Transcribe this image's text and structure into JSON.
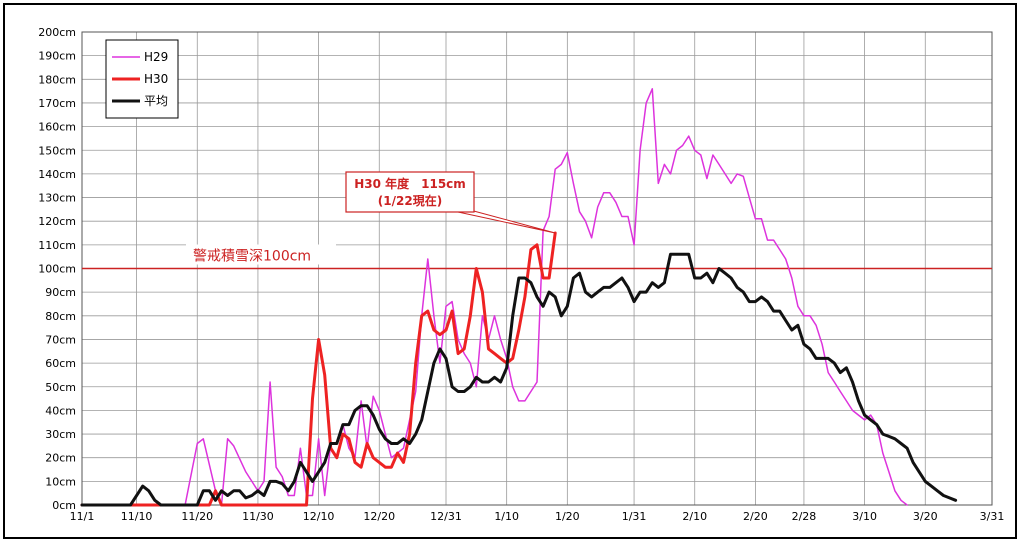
{
  "chart_data": {
    "type": "line",
    "title": "",
    "xlabel": "",
    "ylabel": "",
    "x_unit": "day",
    "x_start_date": "11/1",
    "xlim": [
      0,
      150
    ],
    "ylim": [
      0,
      200
    ],
    "y_ticks": [
      0,
      10,
      20,
      30,
      40,
      50,
      60,
      70,
      80,
      90,
      100,
      110,
      120,
      130,
      140,
      150,
      160,
      170,
      180,
      190,
      200
    ],
    "y_tick_labels": [
      "0cm",
      "10cm",
      "20cm",
      "30cm",
      "40cm",
      "50cm",
      "60cm",
      "70cm",
      "80cm",
      "90cm",
      "100cm",
      "110cm",
      "120cm",
      "130cm",
      "140cm",
      "150cm",
      "160cm",
      "170cm",
      "180cm",
      "190cm",
      "200cm"
    ],
    "x_ticks": [
      0,
      9,
      19,
      29,
      39,
      49,
      60,
      70,
      80,
      91,
      101,
      111,
      119,
      129,
      139,
      150
    ],
    "x_tick_labels": [
      "11/1",
      "11/10",
      "11/20",
      "11/30",
      "12/10",
      "12/20",
      "12/31",
      "1/10",
      "1/20",
      "1/31",
      "2/10",
      "2/20",
      "2/28",
      "3/10",
      "3/20",
      "3/31"
    ],
    "grid": true,
    "legend_position": "top-left",
    "series": [
      {
        "name": "H29",
        "color": "#dd33dd",
        "width": 1.5,
        "points": [
          [
            0,
            0
          ],
          [
            17,
            0
          ],
          [
            19,
            26
          ],
          [
            20,
            28
          ],
          [
            22,
            6
          ],
          [
            23,
            0
          ],
          [
            24,
            28
          ],
          [
            25,
            25
          ],
          [
            27,
            14
          ],
          [
            29,
            6
          ],
          [
            30,
            10
          ],
          [
            31,
            52
          ],
          [
            32,
            16
          ],
          [
            33,
            12
          ],
          [
            34,
            4
          ],
          [
            35,
            4
          ],
          [
            36,
            24
          ],
          [
            37,
            4
          ],
          [
            38,
            4
          ],
          [
            39,
            28
          ],
          [
            40,
            4
          ],
          [
            41,
            26
          ],
          [
            42,
            26
          ],
          [
            43,
            34
          ],
          [
            44,
            24
          ],
          [
            45,
            20
          ],
          [
            46,
            44
          ],
          [
            47,
            24
          ],
          [
            48,
            46
          ],
          [
            49,
            40
          ],
          [
            50,
            30
          ],
          [
            51,
            20
          ],
          [
            52,
            22
          ],
          [
            53,
            24
          ],
          [
            54,
            36
          ],
          [
            55,
            48
          ],
          [
            56,
            80
          ],
          [
            57,
            104
          ],
          [
            58,
            80
          ],
          [
            59,
            60
          ],
          [
            60,
            84
          ],
          [
            61,
            86
          ],
          [
            62,
            70
          ],
          [
            63,
            64
          ],
          [
            64,
            60
          ],
          [
            65,
            50
          ],
          [
            66,
            80
          ],
          [
            67,
            70
          ],
          [
            68,
            80
          ],
          [
            69,
            70
          ],
          [
            70,
            62
          ],
          [
            71,
            50
          ],
          [
            72,
            44
          ],
          [
            73,
            44
          ],
          [
            74,
            48
          ],
          [
            75,
            52
          ],
          [
            76,
            116
          ],
          [
            77,
            122
          ],
          [
            78,
            142
          ],
          [
            79,
            144
          ],
          [
            80,
            149
          ],
          [
            81,
            136
          ],
          [
            82,
            124
          ],
          [
            83,
            120
          ],
          [
            84,
            113
          ],
          [
            85,
            126
          ],
          [
            86,
            132
          ],
          [
            87,
            132
          ],
          [
            88,
            128
          ],
          [
            89,
            122
          ],
          [
            90,
            122
          ],
          [
            91,
            110
          ],
          [
            92,
            150
          ],
          [
            93,
            170
          ],
          [
            94,
            176
          ],
          [
            95,
            136
          ],
          [
            96,
            144
          ],
          [
            97,
            140
          ],
          [
            98,
            150
          ],
          [
            99,
            152
          ],
          [
            100,
            156
          ],
          [
            101,
            150
          ],
          [
            102,
            148
          ],
          [
            103,
            138
          ],
          [
            104,
            148
          ],
          [
            105,
            144
          ],
          [
            106,
            140
          ],
          [
            107,
            136
          ],
          [
            108,
            140
          ],
          [
            109,
            139
          ],
          [
            110,
            130
          ],
          [
            111,
            121
          ],
          [
            112,
            121
          ],
          [
            113,
            112
          ],
          [
            114,
            112
          ],
          [
            115,
            108
          ],
          [
            116,
            104
          ],
          [
            117,
            96
          ],
          [
            118,
            84
          ],
          [
            119,
            80
          ],
          [
            120,
            80
          ],
          [
            121,
            76
          ],
          [
            122,
            68
          ],
          [
            123,
            56
          ],
          [
            124,
            52
          ],
          [
            125,
            48
          ],
          [
            126,
            44
          ],
          [
            127,
            40
          ],
          [
            128,
            38
          ],
          [
            129,
            36
          ],
          [
            130,
            38
          ],
          [
            131,
            34
          ],
          [
            132,
            22
          ],
          [
            133,
            14
          ],
          [
            134,
            6
          ],
          [
            135,
            2
          ],
          [
            136,
            0
          ]
        ]
      },
      {
        "name": "H30",
        "color": "#ee2222",
        "width": 3,
        "points": [
          [
            0,
            0
          ],
          [
            21,
            0
          ],
          [
            22,
            6
          ],
          [
            23,
            0
          ],
          [
            24,
            0
          ],
          [
            33,
            0
          ],
          [
            36,
            0
          ],
          [
            37,
            0
          ],
          [
            38,
            45
          ],
          [
            39,
            70
          ],
          [
            40,
            55
          ],
          [
            41,
            24
          ],
          [
            42,
            20
          ],
          [
            43,
            30
          ],
          [
            44,
            28
          ],
          [
            45,
            18
          ],
          [
            46,
            16
          ],
          [
            47,
            26
          ],
          [
            48,
            20
          ],
          [
            49,
            18
          ],
          [
            50,
            16
          ],
          [
            51,
            16
          ],
          [
            52,
            22
          ],
          [
            53,
            18
          ],
          [
            54,
            30
          ],
          [
            55,
            60
          ],
          [
            56,
            80
          ],
          [
            57,
            82
          ],
          [
            58,
            74
          ],
          [
            59,
            72
          ],
          [
            60,
            74
          ],
          [
            61,
            82
          ],
          [
            62,
            64
          ],
          [
            63,
            66
          ],
          [
            64,
            80
          ],
          [
            65,
            100
          ],
          [
            66,
            90
          ],
          [
            67,
            66
          ],
          [
            68,
            64
          ],
          [
            69,
            62
          ],
          [
            70,
            60
          ],
          [
            71,
            62
          ],
          [
            72,
            74
          ],
          [
            73,
            88
          ],
          [
            74,
            108
          ],
          [
            75,
            110
          ],
          [
            76,
            96
          ],
          [
            77,
            96
          ],
          [
            78,
            115
          ]
        ]
      },
      {
        "name": "平均",
        "color": "#111111",
        "width": 3,
        "points": [
          [
            0,
            0
          ],
          [
            8,
            0
          ],
          [
            10,
            8
          ],
          [
            11,
            6
          ],
          [
            12,
            2
          ],
          [
            13,
            0
          ],
          [
            19,
            0
          ],
          [
            20,
            6
          ],
          [
            21,
            6
          ],
          [
            22,
            2
          ],
          [
            23,
            6
          ],
          [
            24,
            4
          ],
          [
            25,
            6
          ],
          [
            26,
            6
          ],
          [
            27,
            3
          ],
          [
            28,
            4
          ],
          [
            29,
            6
          ],
          [
            30,
            4
          ],
          [
            31,
            10
          ],
          [
            32,
            10
          ],
          [
            33,
            9
          ],
          [
            34,
            6
          ],
          [
            35,
            10
          ],
          [
            36,
            18
          ],
          [
            37,
            14
          ],
          [
            38,
            10
          ],
          [
            39,
            14
          ],
          [
            40,
            18
          ],
          [
            41,
            26
          ],
          [
            42,
            26
          ],
          [
            43,
            34
          ],
          [
            44,
            34
          ],
          [
            45,
            40
          ],
          [
            46,
            42
          ],
          [
            47,
            42
          ],
          [
            48,
            38
          ],
          [
            49,
            32
          ],
          [
            50,
            28
          ],
          [
            51,
            26
          ],
          [
            52,
            26
          ],
          [
            53,
            28
          ],
          [
            54,
            26
          ],
          [
            55,
            30
          ],
          [
            56,
            36
          ],
          [
            57,
            48
          ],
          [
            58,
            60
          ],
          [
            59,
            66
          ],
          [
            60,
            62
          ],
          [
            61,
            50
          ],
          [
            62,
            48
          ],
          [
            63,
            48
          ],
          [
            64,
            50
          ],
          [
            65,
            54
          ],
          [
            66,
            52
          ],
          [
            67,
            52
          ],
          [
            68,
            54
          ],
          [
            69,
            52
          ],
          [
            70,
            58
          ],
          [
            71,
            80
          ],
          [
            72,
            96
          ],
          [
            73,
            96
          ],
          [
            74,
            94
          ],
          [
            75,
            88
          ],
          [
            76,
            84
          ],
          [
            77,
            90
          ],
          [
            78,
            88
          ],
          [
            79,
            80
          ],
          [
            80,
            84
          ],
          [
            81,
            96
          ],
          [
            82,
            98
          ],
          [
            83,
            90
          ],
          [
            84,
            88
          ],
          [
            85,
            90
          ],
          [
            86,
            92
          ],
          [
            87,
            92
          ],
          [
            88,
            94
          ],
          [
            89,
            96
          ],
          [
            90,
            92
          ],
          [
            91,
            86
          ],
          [
            92,
            90
          ],
          [
            93,
            90
          ],
          [
            94,
            94
          ],
          [
            95,
            92
          ],
          [
            96,
            94
          ],
          [
            97,
            106
          ],
          [
            98,
            106
          ],
          [
            99,
            106
          ],
          [
            100,
            106
          ],
          [
            101,
            96
          ],
          [
            102,
            96
          ],
          [
            103,
            98
          ],
          [
            104,
            94
          ],
          [
            105,
            100
          ],
          [
            106,
            98
          ],
          [
            107,
            96
          ],
          [
            108,
            92
          ],
          [
            109,
            90
          ],
          [
            110,
            86
          ],
          [
            111,
            86
          ],
          [
            112,
            88
          ],
          [
            113,
            86
          ],
          [
            114,
            82
          ],
          [
            115,
            82
          ],
          [
            116,
            78
          ],
          [
            117,
            74
          ],
          [
            118,
            76
          ],
          [
            119,
            68
          ],
          [
            120,
            66
          ],
          [
            121,
            62
          ],
          [
            122,
            62
          ],
          [
            123,
            62
          ],
          [
            124,
            60
          ],
          [
            125,
            56
          ],
          [
            126,
            58
          ],
          [
            127,
            52
          ],
          [
            128,
            44
          ],
          [
            129,
            38
          ],
          [
            130,
            36
          ],
          [
            131,
            34
          ],
          [
            132,
            30
          ],
          [
            133,
            29
          ],
          [
            134,
            28
          ],
          [
            135,
            26
          ],
          [
            136,
            24
          ],
          [
            137,
            18
          ],
          [
            138,
            14
          ],
          [
            139,
            10
          ],
          [
            140,
            8
          ],
          [
            141,
            6
          ],
          [
            142,
            4
          ],
          [
            143,
            3
          ],
          [
            144,
            2
          ]
        ]
      }
    ],
    "reference_line": {
      "value": 100,
      "color": "#cc2222",
      "label": "警戒積雪深100cm"
    },
    "annotation": {
      "line1": "H30 年度　115cm",
      "line2": "(1/22現在)",
      "target": [
        78,
        115
      ],
      "color": "#cc2222"
    }
  }
}
